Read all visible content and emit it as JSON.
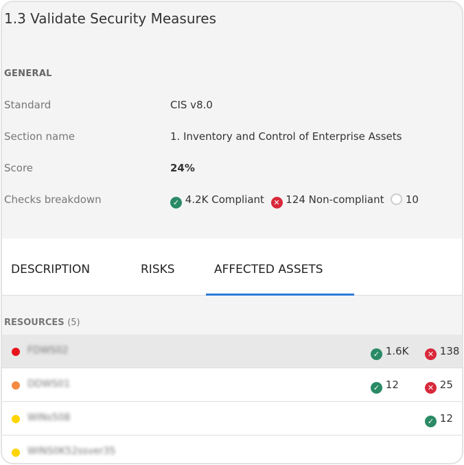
{
  "title": "1.3 Validate Security Measures",
  "general": {
    "heading": "GENERAL",
    "fields": [
      {
        "label": "Standard",
        "value": "CIS v8.0"
      },
      {
        "label": "Section name",
        "value": "1. Inventory and Control of Enterprise Assets"
      },
      {
        "label": "Score",
        "value": "24%"
      },
      {
        "label": "Checks breakdown"
      }
    ],
    "breakdown": {
      "compliant": "4.2K Compliant",
      "noncompliant": "124 Non-compliant",
      "other": "10"
    }
  },
  "tabs": [
    {
      "label": "DESCRIPTION"
    },
    {
      "label": "RISKS"
    },
    {
      "label": "AFFECTED ASSETS",
      "active": true
    }
  ],
  "resources": {
    "heading": "RESOURCES",
    "count": "(5)",
    "rows": [
      {
        "name": "FDWS02",
        "severity_color": "#e8141c",
        "passed": "1.6K",
        "failed": "138"
      },
      {
        "name": "DDWS01",
        "severity_color": "#f58a42",
        "passed": "12",
        "failed": "25"
      },
      {
        "name": "WINs508",
        "severity_color": "#ffd400",
        "passed": "12"
      },
      {
        "name": "WINS0K52ssver35",
        "severity_color": "#ffd400"
      }
    ]
  },
  "colors": {
    "accent": "#2a7ad8",
    "ok": "#2a8a66",
    "bad": "#d8283a"
  }
}
